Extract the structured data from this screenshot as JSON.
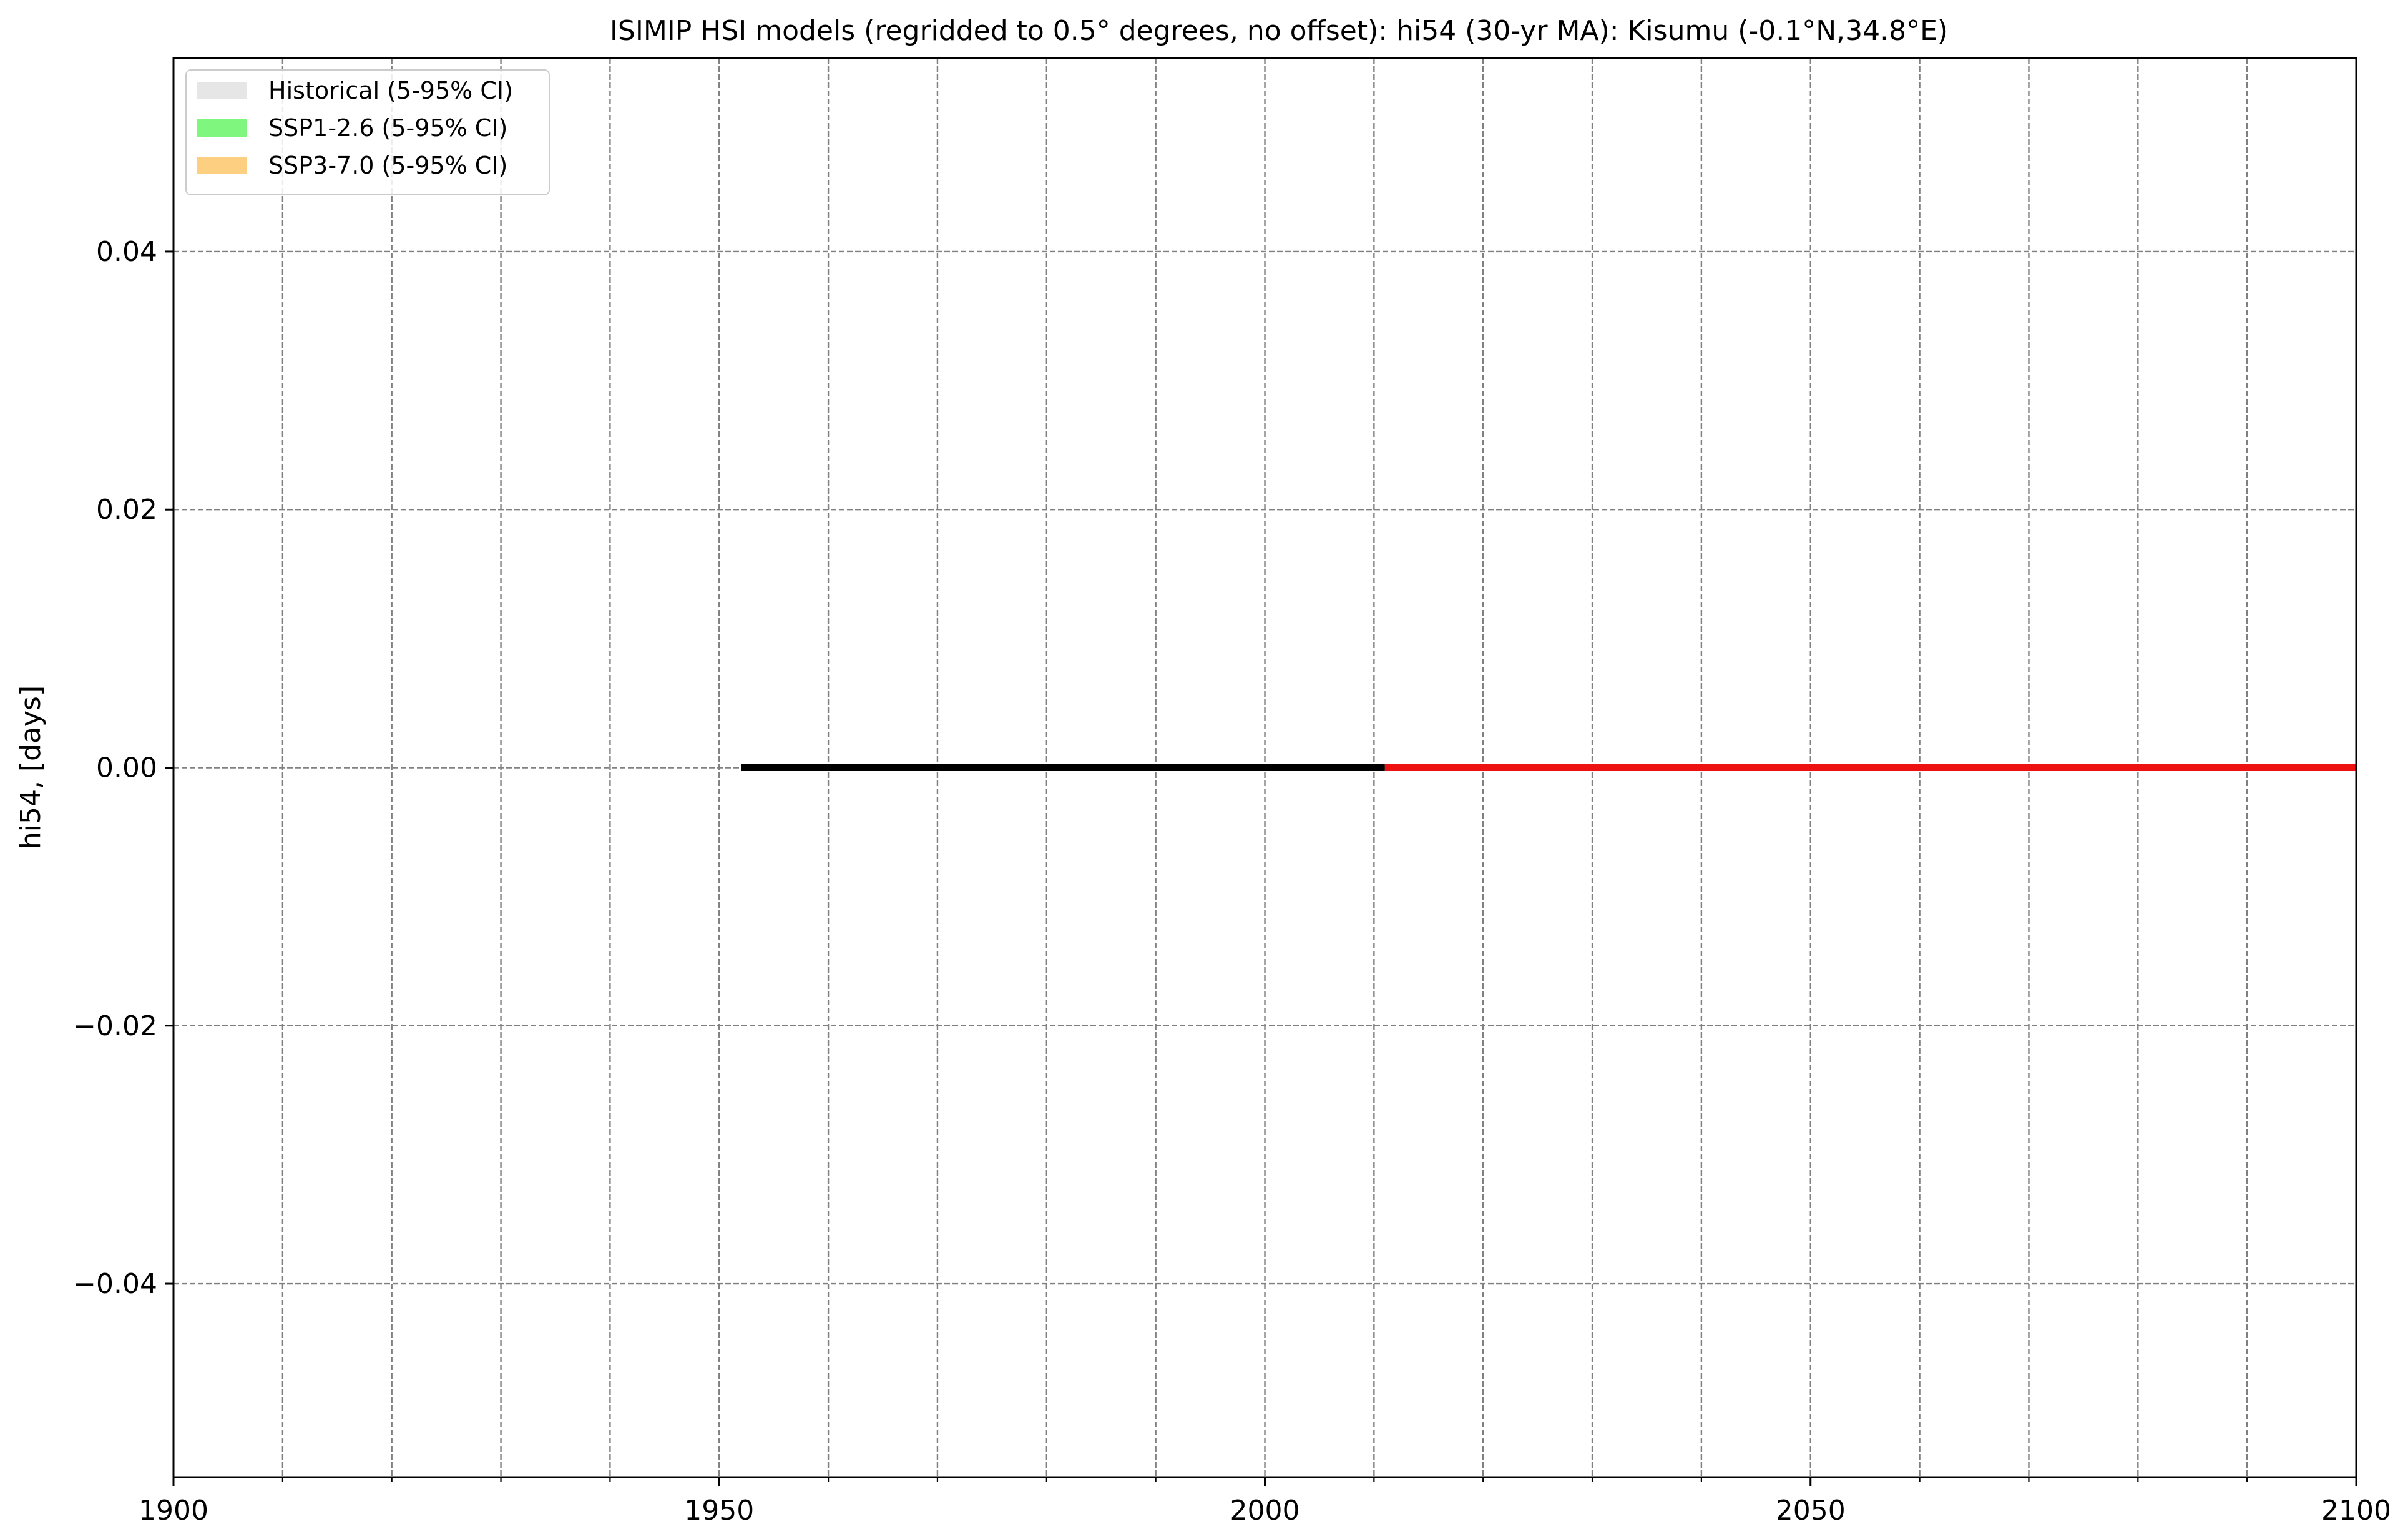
{
  "chart_data": {
    "type": "line",
    "title": "ISIMIP HSI models (regridded to 0.5° degrees, no offset): hi54 (30-yr MA): Kisumu (-0.1°N,34.8°E)",
    "xlabel": "",
    "ylabel": "hi54, [days]",
    "xlim": [
      1900,
      2100
    ],
    "ylim": [
      -0.055,
      0.055
    ],
    "x_major_ticks": [
      1900,
      1950,
      2000,
      2050,
      2100
    ],
    "x_minor_ticks": [
      1910,
      1920,
      1930,
      1940,
      1960,
      1970,
      1980,
      1990,
      2010,
      2020,
      2030,
      2040,
      2060,
      2070,
      2080,
      2090
    ],
    "x_tick_labels": [
      "1900",
      "1950",
      "2000",
      "2050",
      "2100"
    ],
    "y_ticks": [
      -0.04,
      -0.02,
      0.0,
      0.02,
      0.04
    ],
    "y_tick_labels": [
      "−0.04",
      "−0.02",
      "0.00",
      "0.02",
      "0.04"
    ],
    "grid": true,
    "legend_position": "top-left",
    "legend": [
      {
        "label": "Historical (5-95% CI)",
        "color": "#e6e6e6"
      },
      {
        "label": "SSP1-2.6 (5-95% CI)",
        "color": "#7ff77f"
      },
      {
        "label": "SSP3-7.0 (5-95% CI)",
        "color": "#fdcf80"
      }
    ],
    "series": [
      {
        "color": "#000000",
        "x": [
          1952,
          2011
        ],
        "y": [
          0.0,
          0.0
        ]
      },
      {
        "color": "#ee1111",
        "x": [
          2011,
          2100
        ],
        "y": [
          0.0,
          0.0
        ]
      }
    ]
  }
}
